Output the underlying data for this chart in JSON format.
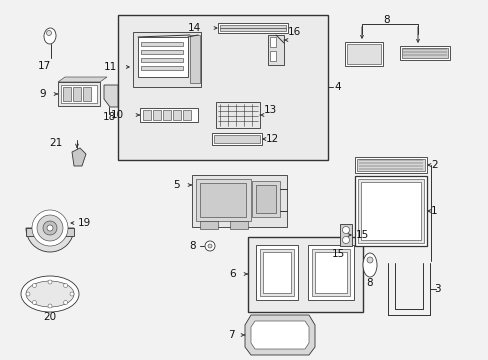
{
  "bg_color": "#f2f2f2",
  "line_color": "#333333",
  "white": "#ffffff",
  "gray_light": "#d8d8d8",
  "gray_mid": "#c0c0c0",
  "fig_bg": "#f2f2f2",
  "lw_main": 0.9,
  "lw_thin": 0.6,
  "fs_label": 7.5,
  "label_color": "#111111"
}
